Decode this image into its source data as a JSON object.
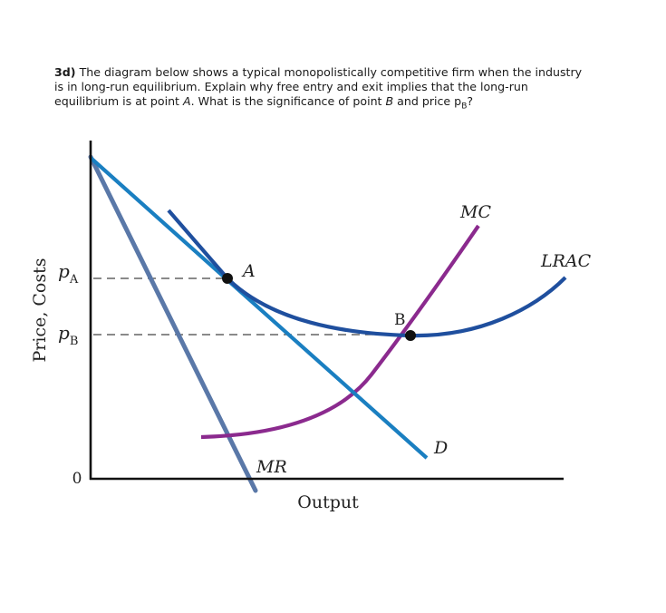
{
  "question": {
    "number": "3d)",
    "line1": "The diagram below shows a typical monopolistically competitive firm when the industry",
    "line2": "is in long-run equilibrium. Explain why free entry and exit implies that the long-run",
    "line3_pre": "equilibrium is at point ",
    "line3_point_a": "A",
    "line3_mid": ". What is the significance of point ",
    "line3_point_b": "B",
    "line3_post": " and price p",
    "line3_sub": "B",
    "line3_end": "?"
  },
  "diagram": {
    "y_axis_label": "Price, Costs",
    "x_axis_label": "Output",
    "origin_label": "0",
    "price_a": {
      "main": "p",
      "sub": "A"
    },
    "price_b": {
      "main": "p",
      "sub": "B"
    },
    "curves": {
      "mc": "MC",
      "lrac": "LRAC",
      "demand": "D",
      "mr": "MR"
    },
    "points": {
      "a": "A",
      "b": "B"
    },
    "colors": {
      "demand": "#1a7fc1",
      "lrac": "#1f4f9e",
      "mc": "#8b2a8e",
      "mr": "#5a78a8",
      "axis": "#111111",
      "dashed": "#444444"
    }
  }
}
